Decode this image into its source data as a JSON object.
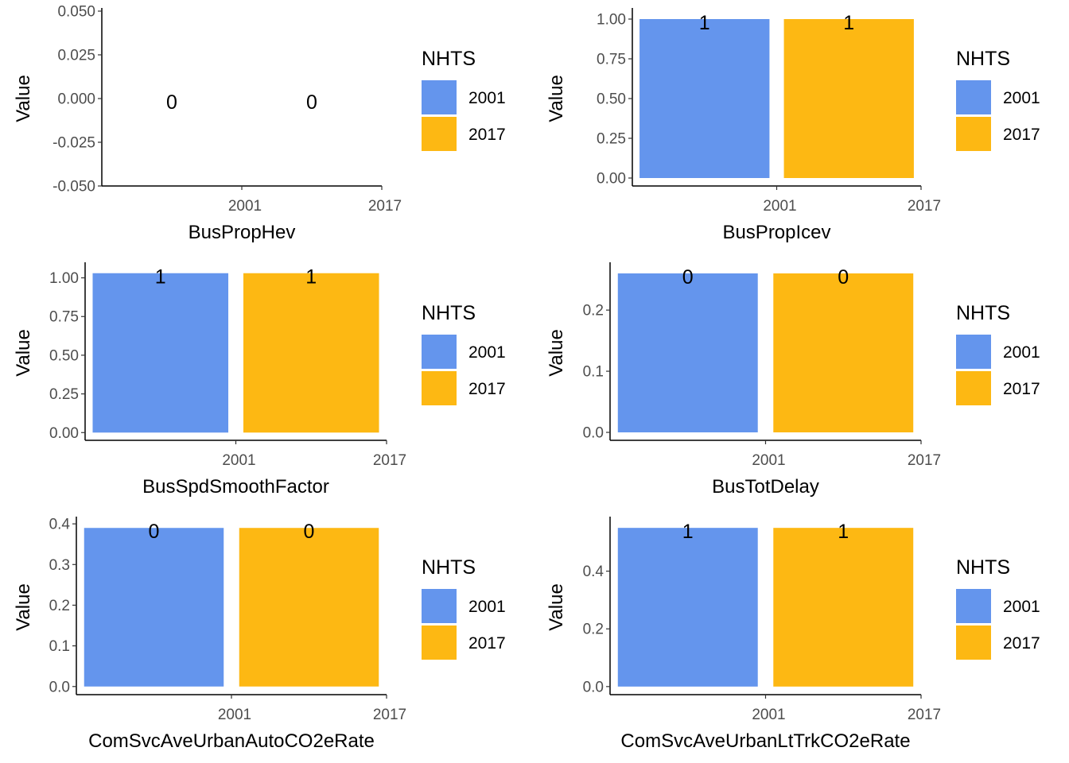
{
  "legend": {
    "title": "NHTS",
    "entries": [
      {
        "label": "2001",
        "color": "#6495ED"
      },
      {
        "label": "2017",
        "color": "#FDB813"
      }
    ]
  },
  "chart_data": [
    {
      "type": "bar",
      "xlabel": "BusPropHev",
      "ylabel": "Value",
      "categories": [
        "2001",
        "2017"
      ],
      "values": [
        0,
        0
      ],
      "data_labels": [
        "0",
        "0"
      ],
      "yticks": [
        "0.050",
        "0.025",
        "0.000",
        "-0.025",
        "-0.050"
      ],
      "ytick_values": [
        0.05,
        0.025,
        0,
        -0.025,
        -0.05
      ],
      "ylim": [
        -0.05,
        0.05
      ],
      "grid": false,
      "legend_position": "right"
    },
    {
      "type": "bar",
      "xlabel": "BusPropIcev",
      "ylabel": "Value",
      "categories": [
        "2001",
        "2017"
      ],
      "values": [
        1,
        1
      ],
      "data_labels": [
        "1",
        "1"
      ],
      "yticks": [
        "1.00",
        "0.75",
        "0.50",
        "0.25",
        "0.00"
      ],
      "ytick_values": [
        1,
        0.75,
        0.5,
        0.25,
        0
      ],
      "ylim": [
        -0.05,
        1.05
      ],
      "grid": false,
      "legend_position": "right"
    },
    {
      "type": "bar",
      "xlabel": "BusSpdSmoothFactor",
      "ylabel": "Value",
      "categories": [
        "2001",
        "2017"
      ],
      "values": [
        1.03,
        1.03
      ],
      "data_labels": [
        "1",
        "1"
      ],
      "yticks": [
        "1.00",
        "0.75",
        "0.50",
        "0.25",
        "0.00"
      ],
      "ytick_values": [
        1,
        0.75,
        0.5,
        0.25,
        0
      ],
      "ylim": [
        -0.05,
        1.08
      ],
      "grid": false,
      "legend_position": "right"
    },
    {
      "type": "bar",
      "xlabel": "BusTotDelay",
      "ylabel": "Value",
      "categories": [
        "2001",
        "2017"
      ],
      "values": [
        0.26,
        0.26
      ],
      "data_labels": [
        "0",
        "0"
      ],
      "yticks": [
        "0.2",
        "0.1",
        "0.0"
      ],
      "ytick_values": [
        0.2,
        0.1,
        0
      ],
      "ylim": [
        -0.013,
        0.273
      ],
      "grid": false,
      "legend_position": "right"
    },
    {
      "type": "bar",
      "xlabel": "ComSvcAveUrbanAutoCO2eRate",
      "ylabel": "Value",
      "categories": [
        "2001",
        "2017"
      ],
      "values": [
        0.39,
        0.39
      ],
      "data_labels": [
        "0",
        "0"
      ],
      "yticks": [
        "0.4",
        "0.3",
        "0.2",
        "0.1",
        "0.0"
      ],
      "ytick_values": [
        0.4,
        0.3,
        0.2,
        0.1,
        0
      ],
      "ylim": [
        -0.02,
        0.41
      ],
      "grid": false,
      "legend_position": "right"
    },
    {
      "type": "bar",
      "xlabel": "ComSvcAveUrbanLtTrkCO2eRate",
      "ylabel": "Value",
      "categories": [
        "2001",
        "2017"
      ],
      "values": [
        0.55,
        0.55
      ],
      "data_labels": [
        "1",
        "1"
      ],
      "yticks": [
        "0.4",
        "0.2",
        "0.0"
      ],
      "ytick_values": [
        0.4,
        0.2,
        0
      ],
      "ylim": [
        -0.028,
        0.578
      ],
      "grid": false,
      "legend_position": "right"
    }
  ]
}
